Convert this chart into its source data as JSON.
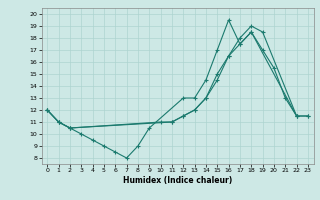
{
  "xlabel": "Humidex (Indice chaleur)",
  "xlim": [
    -0.5,
    23.5
  ],
  "ylim": [
    7.5,
    20.5
  ],
  "yticks": [
    8,
    9,
    10,
    11,
    12,
    13,
    14,
    15,
    16,
    17,
    18,
    19,
    20
  ],
  "xticks": [
    0,
    1,
    2,
    3,
    4,
    5,
    6,
    7,
    8,
    9,
    10,
    11,
    12,
    13,
    14,
    15,
    16,
    17,
    18,
    19,
    20,
    21,
    22,
    23
  ],
  "bg_color": "#cde8e5",
  "grid_color": "#aed4d0",
  "line_color": "#1b7a6e",
  "line_width": 0.8,
  "marker": "+",
  "marker_size": 3,
  "line1_x": [
    0,
    1,
    2,
    3,
    4,
    5,
    6,
    7,
    8,
    9,
    12,
    13,
    14,
    15,
    16,
    17,
    18,
    19,
    20,
    21,
    22
  ],
  "line1_y": [
    12,
    11,
    10.5,
    10,
    9.5,
    9,
    8.5,
    8,
    9,
    10.5,
    13,
    13,
    14.5,
    17,
    19.5,
    17.5,
    18.5,
    17,
    15.5,
    13,
    11.5
  ],
  "line2_x": [
    0,
    1,
    2,
    11,
    12,
    13,
    14,
    15,
    16,
    17,
    18,
    19,
    22,
    23
  ],
  "line2_y": [
    12,
    11,
    10.5,
    11,
    11.5,
    12,
    13,
    15,
    16.5,
    18,
    19,
    18.5,
    11.5,
    11.5
  ],
  "line3_x": [
    0,
    1,
    2,
    10,
    11,
    12,
    13,
    14,
    15,
    16,
    17,
    18,
    22,
    23
  ],
  "line3_y": [
    12,
    11,
    10.5,
    11,
    11,
    11.5,
    12,
    13,
    14.5,
    16.5,
    17.5,
    18.5,
    11.5,
    11.5
  ]
}
